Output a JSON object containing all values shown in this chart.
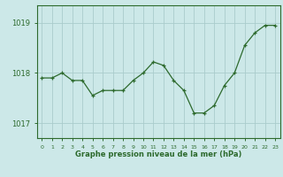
{
  "x": [
    0,
    1,
    2,
    3,
    4,
    5,
    6,
    7,
    8,
    9,
    10,
    11,
    12,
    13,
    14,
    15,
    16,
    17,
    18,
    19,
    20,
    21,
    22,
    23
  ],
  "y": [
    1017.9,
    1017.9,
    1018.0,
    1017.85,
    1017.85,
    1017.55,
    1017.65,
    1017.65,
    1017.65,
    1017.85,
    1018.0,
    1018.22,
    1018.15,
    1017.85,
    1017.65,
    1017.2,
    1017.2,
    1017.35,
    1017.75,
    1018.0,
    1018.55,
    1018.8,
    1018.95,
    1018.95
  ],
  "line_color": "#2d6a2d",
  "marker": "+",
  "bg_color": "#cce8e8",
  "grid_color": "#aacccc",
  "axis_color": "#2d6a2d",
  "tick_label_color": "#2d6a2d",
  "xlabel": "Graphe pression niveau de la mer (hPa)",
  "yticks": [
    1017,
    1018,
    1019
  ],
  "ylim": [
    1016.7,
    1019.35
  ],
  "xlim": [
    -0.5,
    23.5
  ]
}
